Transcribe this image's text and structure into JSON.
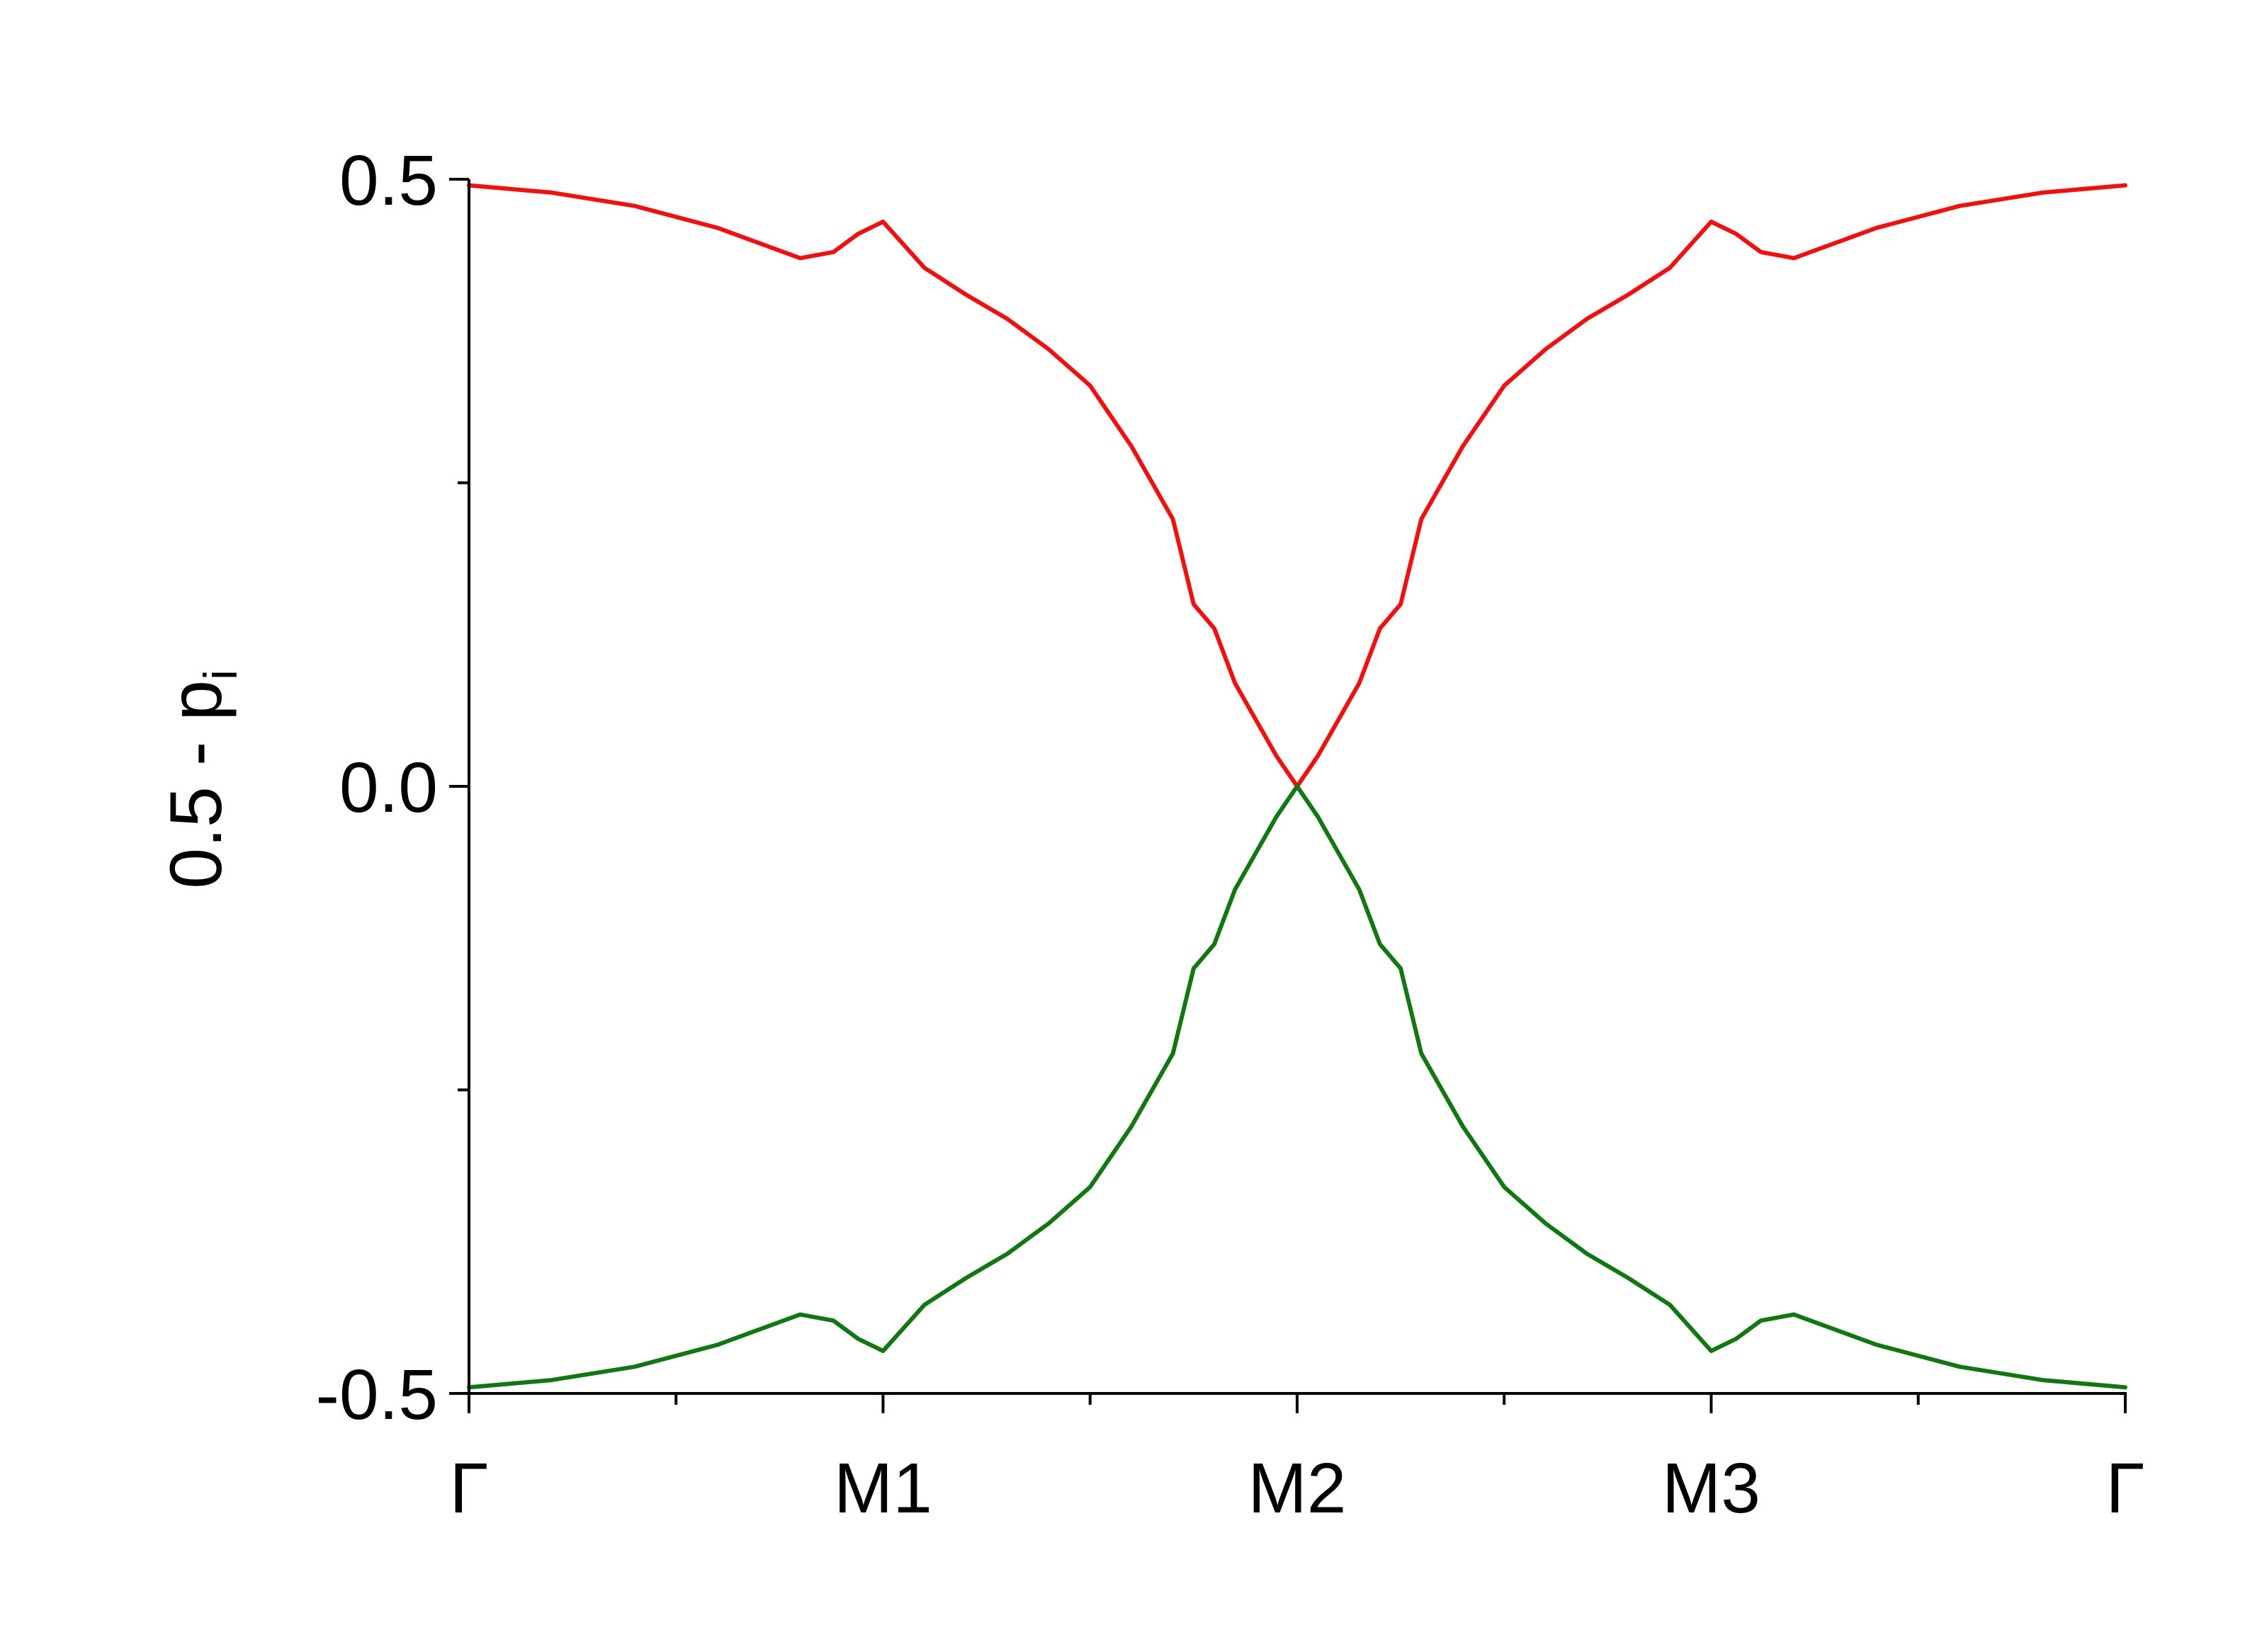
{
  "chart_data": {
    "type": "line",
    "title": "",
    "xlabel": "",
    "ylabel": {
      "main": "0.5 - p",
      "subscript": "i"
    },
    "xlim": [
      0,
      4
    ],
    "ylim": [
      -0.5,
      0.5
    ],
    "x_ticks": [
      {
        "x": 0,
        "label": "Γ"
      },
      {
        "x": 1,
        "label": "M1"
      },
      {
        "x": 2,
        "label": "M2"
      },
      {
        "x": 3,
        "label": "M3"
      },
      {
        "x": 4,
        "label": "Γ"
      }
    ],
    "x_minor_ticks": [
      0.5,
      1.5,
      2.5,
      3.5
    ],
    "y_ticks": [
      {
        "y": 0.5,
        "label": "0.5"
      },
      {
        "y": 0.0,
        "label": "0.0"
      },
      {
        "y": -0.5,
        "label": "-0.5"
      }
    ],
    "y_minor_ticks": [
      0.25,
      -0.25
    ],
    "grid": false,
    "legend": "none",
    "series": [
      {
        "color": "#ee1111",
        "x": [
          0,
          0.2,
          0.4,
          0.6,
          0.8,
          0.88,
          0.94,
          1.0,
          1.1,
          1.2,
          1.3,
          1.4,
          1.5,
          1.6,
          1.7,
          1.75,
          1.8,
          1.85,
          1.9,
          1.95,
          2.0,
          2.05,
          2.1,
          2.15,
          2.2,
          2.25,
          2.3,
          2.4,
          2.5,
          2.6,
          2.7,
          2.8,
          2.9,
          3.0,
          3.06,
          3.12,
          3.2,
          3.4,
          3.6,
          3.8,
          4.0
        ],
        "y": [
          0.495,
          0.489,
          0.478,
          0.46,
          0.435,
          0.44,
          0.455,
          0.465,
          0.427,
          0.405,
          0.385,
          0.36,
          0.33,
          0.28,
          0.22,
          0.15,
          0.13,
          0.085,
          0.055,
          0.025,
          0.0,
          0.025,
          0.055,
          0.085,
          0.13,
          0.15,
          0.22,
          0.28,
          0.33,
          0.36,
          0.385,
          0.405,
          0.427,
          0.465,
          0.455,
          0.44,
          0.435,
          0.46,
          0.478,
          0.489,
          0.495
        ]
      },
      {
        "color": "#127712",
        "x": [
          0,
          0.2,
          0.4,
          0.6,
          0.8,
          0.88,
          0.94,
          1.0,
          1.1,
          1.2,
          1.3,
          1.4,
          1.5,
          1.6,
          1.7,
          1.75,
          1.8,
          1.85,
          1.9,
          1.95,
          2.0,
          2.05,
          2.1,
          2.15,
          2.2,
          2.25,
          2.3,
          2.4,
          2.5,
          2.6,
          2.7,
          2.8,
          2.9,
          3.0,
          3.06,
          3.12,
          3.2,
          3.4,
          3.6,
          3.8,
          4.0
        ],
        "y": [
          -0.495,
          -0.489,
          -0.478,
          -0.46,
          -0.435,
          -0.44,
          -0.455,
          -0.465,
          -0.427,
          -0.405,
          -0.385,
          -0.36,
          -0.33,
          -0.28,
          -0.22,
          -0.15,
          -0.13,
          -0.085,
          -0.055,
          -0.025,
          0.0,
          -0.025,
          -0.055,
          -0.085,
          -0.13,
          -0.15,
          -0.22,
          -0.28,
          -0.33,
          -0.36,
          -0.385,
          -0.405,
          -0.427,
          -0.465,
          -0.455,
          -0.44,
          -0.435,
          -0.46,
          -0.478,
          -0.489,
          -0.495
        ]
      }
    ]
  }
}
